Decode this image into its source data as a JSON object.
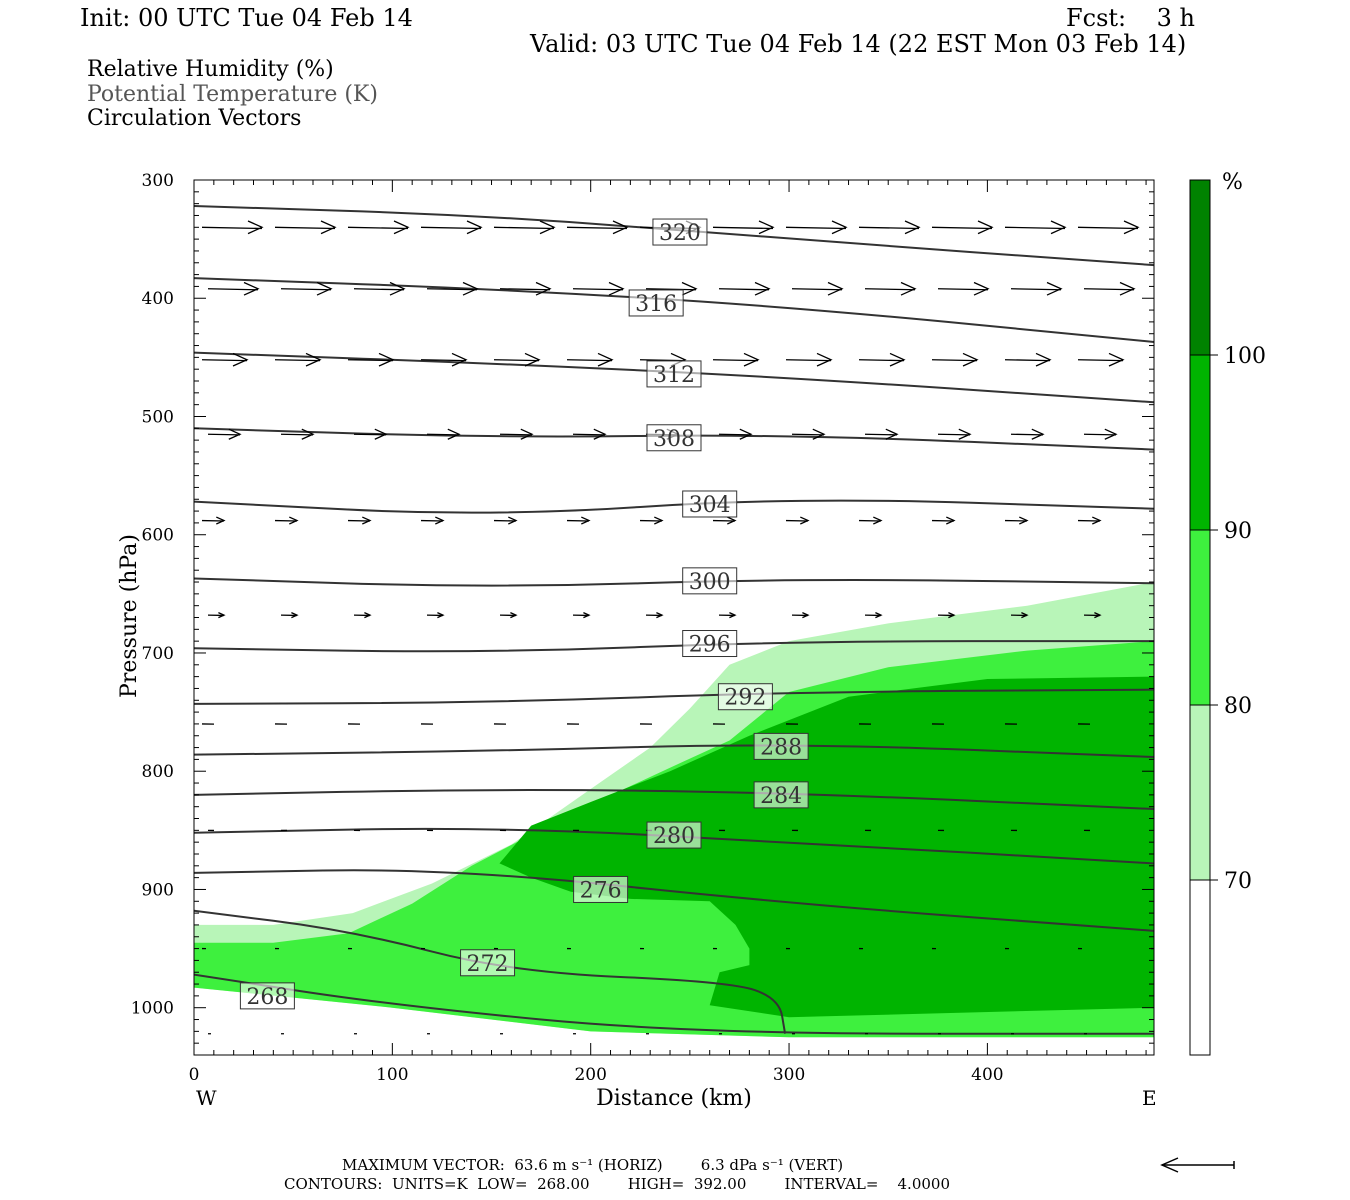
{
  "header": {
    "init": "Init: 00 UTC Tue 04 Feb 14",
    "fcst": "Fcst:    3 h",
    "valid": "Valid: 03 UTC Tue 04 Feb 14 (22 EST Mon 03 Feb 14)"
  },
  "fields": {
    "rh": "Relative Humidity (%)",
    "theta": "Potential Temperature (K)",
    "vectors": "Circulation Vectors"
  },
  "footer": {
    "vector_line": "MAXIMUM VECTOR:  63.6 m s⁻¹ (HORIZ)        6.3 dPa s⁻¹ (VERT)",
    "contour_line": "CONTOURS:  UNITS=K  LOW=  268.00        HIGH=  392.00        INTERVAL=    4.0000"
  },
  "chart_data": {
    "type": "cross-section",
    "xlabel": "Distance (km)",
    "ylabel": "Pressure (hPa)",
    "xlim": [
      0,
      484
    ],
    "ylim": [
      1040,
      300
    ],
    "xticks": [
      0,
      100,
      200,
      300,
      400
    ],
    "yticks": [
      300,
      400,
      500,
      600,
      700,
      800,
      900,
      1000
    ],
    "x_end_labels": {
      "left": "W",
      "right": "E"
    },
    "colorbar": {
      "unit": "%",
      "levels": [
        70,
        80,
        90,
        100
      ],
      "colors": [
        "#ffffff",
        "#b8f5b8",
        "#3ef03e",
        "#00b400",
        "#008200"
      ]
    },
    "rh_regions": [
      {
        "level": 70,
        "points": [
          [
            0,
            930
          ],
          [
            40,
            930
          ],
          [
            80,
            920
          ],
          [
            120,
            895
          ],
          [
            160,
            862
          ],
          [
            200,
            815
          ],
          [
            230,
            780
          ],
          [
            250,
            747
          ],
          [
            270,
            710
          ],
          [
            300,
            690
          ],
          [
            350,
            675
          ],
          [
            420,
            660
          ],
          [
            484,
            640
          ],
          [
            484,
            1025
          ],
          [
            300,
            1025
          ],
          [
            200,
            1020
          ],
          [
            100,
            1000
          ],
          [
            0,
            983
          ]
        ]
      },
      {
        "level": 80,
        "points": [
          [
            0,
            945
          ],
          [
            40,
            945
          ],
          [
            78,
            937
          ],
          [
            110,
            912
          ],
          [
            140,
            880
          ],
          [
            190,
            836
          ],
          [
            240,
            797
          ],
          [
            270,
            774
          ],
          [
            300,
            733
          ],
          [
            350,
            712
          ],
          [
            420,
            698
          ],
          [
            484,
            690
          ],
          [
            484,
            1025
          ],
          [
            300,
            1025
          ],
          [
            200,
            1020
          ],
          [
            100,
            1000
          ],
          [
            0,
            983
          ]
        ]
      },
      {
        "level": 90,
        "points": [
          [
            154,
            878
          ],
          [
            170,
            846
          ],
          [
            200,
            826
          ],
          [
            240,
            800
          ],
          [
            280,
            770
          ],
          [
            330,
            737
          ],
          [
            400,
            722
          ],
          [
            484,
            720
          ],
          [
            484,
            1000
          ],
          [
            300,
            1008
          ],
          [
            260,
            998
          ],
          [
            265,
            970
          ],
          [
            280,
            964
          ],
          [
            280,
            950
          ],
          [
            273,
            930
          ],
          [
            260,
            910
          ],
          [
            220,
            908
          ],
          [
            190,
            902
          ],
          [
            170,
            890
          ]
        ]
      }
    ],
    "theta_contours": [
      {
        "value": 320,
        "label_at": [
          245,
          344
        ],
        "points": [
          [
            0,
            322
          ],
          [
            150,
            330
          ],
          [
            300,
            350
          ],
          [
            484,
            372
          ]
        ]
      },
      {
        "value": 316,
        "label_at": [
          233,
          404
        ],
        "points": [
          [
            0,
            383
          ],
          [
            150,
            392
          ],
          [
            300,
            407
          ],
          [
            484,
            437
          ]
        ]
      },
      {
        "value": 312,
        "label_at": [
          242,
          464
        ],
        "points": [
          [
            0,
            446
          ],
          [
            150,
            455
          ],
          [
            300,
            467
          ],
          [
            484,
            488
          ]
        ]
      },
      {
        "value": 308,
        "label_at": [
          242,
          518
        ],
        "points": [
          [
            0,
            510
          ],
          [
            150,
            518
          ],
          [
            300,
            515
          ],
          [
            484,
            528
          ]
        ]
      },
      {
        "value": 304,
        "label_at": [
          260,
          574
        ],
        "points": [
          [
            0,
            572
          ],
          [
            150,
            585
          ],
          [
            300,
            568
          ],
          [
            484,
            578
          ]
        ]
      },
      {
        "value": 300,
        "label_at": [
          260,
          639
        ],
        "points": [
          [
            0,
            637
          ],
          [
            150,
            645
          ],
          [
            300,
            637
          ],
          [
            484,
            641
          ]
        ]
      },
      {
        "value": 296,
        "label_at": [
          260,
          692
        ],
        "points": [
          [
            0,
            696
          ],
          [
            150,
            700
          ],
          [
            300,
            690
          ],
          [
            484,
            690
          ]
        ]
      },
      {
        "value": 292,
        "label_at": [
          278,
          737
        ],
        "points": [
          [
            0,
            743
          ],
          [
            150,
            742
          ],
          [
            300,
            733
          ],
          [
            484,
            731
          ]
        ]
      },
      {
        "value": 288,
        "label_at": [
          296,
          779
        ],
        "points": [
          [
            0,
            786
          ],
          [
            150,
            783
          ],
          [
            300,
            776
          ],
          [
            484,
            788
          ]
        ]
      },
      {
        "value": 284,
        "label_at": [
          296,
          820
        ],
        "points": [
          [
            0,
            820
          ],
          [
            150,
            815
          ],
          [
            300,
            818
          ],
          [
            484,
            832
          ]
        ]
      },
      {
        "value": 280,
        "label_at": [
          242,
          854
        ],
        "points": [
          [
            0,
            852
          ],
          [
            150,
            847
          ],
          [
            300,
            860
          ],
          [
            484,
            878
          ]
        ]
      },
      {
        "value": 276,
        "label_at": [
          205,
          900
        ],
        "points": [
          [
            0,
            886
          ],
          [
            130,
            882
          ],
          [
            300,
            912
          ],
          [
            484,
            935
          ]
        ]
      },
      {
        "value": 272,
        "label_at": [
          148,
          962
        ],
        "points": [
          [
            0,
            918
          ],
          [
            80,
            935
          ],
          [
            160,
            970
          ],
          [
            270,
            978
          ],
          [
            295,
            992
          ],
          [
            298,
            1022
          ]
        ]
      },
      {
        "value": 268,
        "label_at": [
          37,
          990
        ],
        "points": [
          [
            0,
            972
          ],
          [
            100,
            998
          ],
          [
            250,
            1022
          ],
          [
            484,
            1022
          ]
        ]
      }
    ],
    "vector_rows": [
      {
        "p": 340,
        "dx": 60,
        "head": true
      },
      {
        "p": 392,
        "dx": 50,
        "head": true
      },
      {
        "p": 452,
        "dx": 45,
        "head": true
      },
      {
        "p": 515,
        "dx": 32,
        "head": true
      },
      {
        "p": 588,
        "dx": 22,
        "head": true
      },
      {
        "p": 668,
        "dx": 16,
        "head": true
      },
      {
        "p": 760,
        "dx": 12,
        "head": false
      },
      {
        "p": 850,
        "dx": 6,
        "head": false
      },
      {
        "p": 950,
        "dx": 4,
        "head": false
      },
      {
        "p": 1022,
        "dx": 3,
        "head": false
      }
    ]
  }
}
